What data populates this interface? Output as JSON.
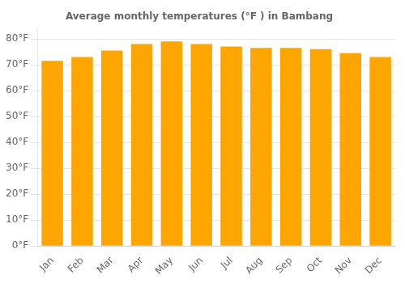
{
  "chart_data": {
    "type": "bar",
    "title": "Average monthly temperatures (°F ) in Bambang",
    "categories": [
      "Jan",
      "Feb",
      "Mar",
      "Apr",
      "May",
      "Jun",
      "Jul",
      "Aug",
      "Sep",
      "Oct",
      "Nov",
      "Dec"
    ],
    "values": [
      71.5,
      73.0,
      75.5,
      78.0,
      79.0,
      78.0,
      77.0,
      76.5,
      76.5,
      76.0,
      74.5,
      73.0
    ],
    "color": "#FFA500",
    "ylim": [
      0,
      83
    ],
    "yticks": [
      {
        "value": 0,
        "label": "0°F"
      },
      {
        "value": 10,
        "label": "10°F"
      },
      {
        "value": 20,
        "label": "20°F"
      },
      {
        "value": 30,
        "label": "30°F"
      },
      {
        "value": 40,
        "label": "40°F"
      },
      {
        "value": 50,
        "label": "50°F"
      },
      {
        "value": 60,
        "label": "60°F"
      },
      {
        "value": 70,
        "label": "70°F"
      },
      {
        "value": 80,
        "label": "80°F"
      }
    ],
    "grid": true
  }
}
